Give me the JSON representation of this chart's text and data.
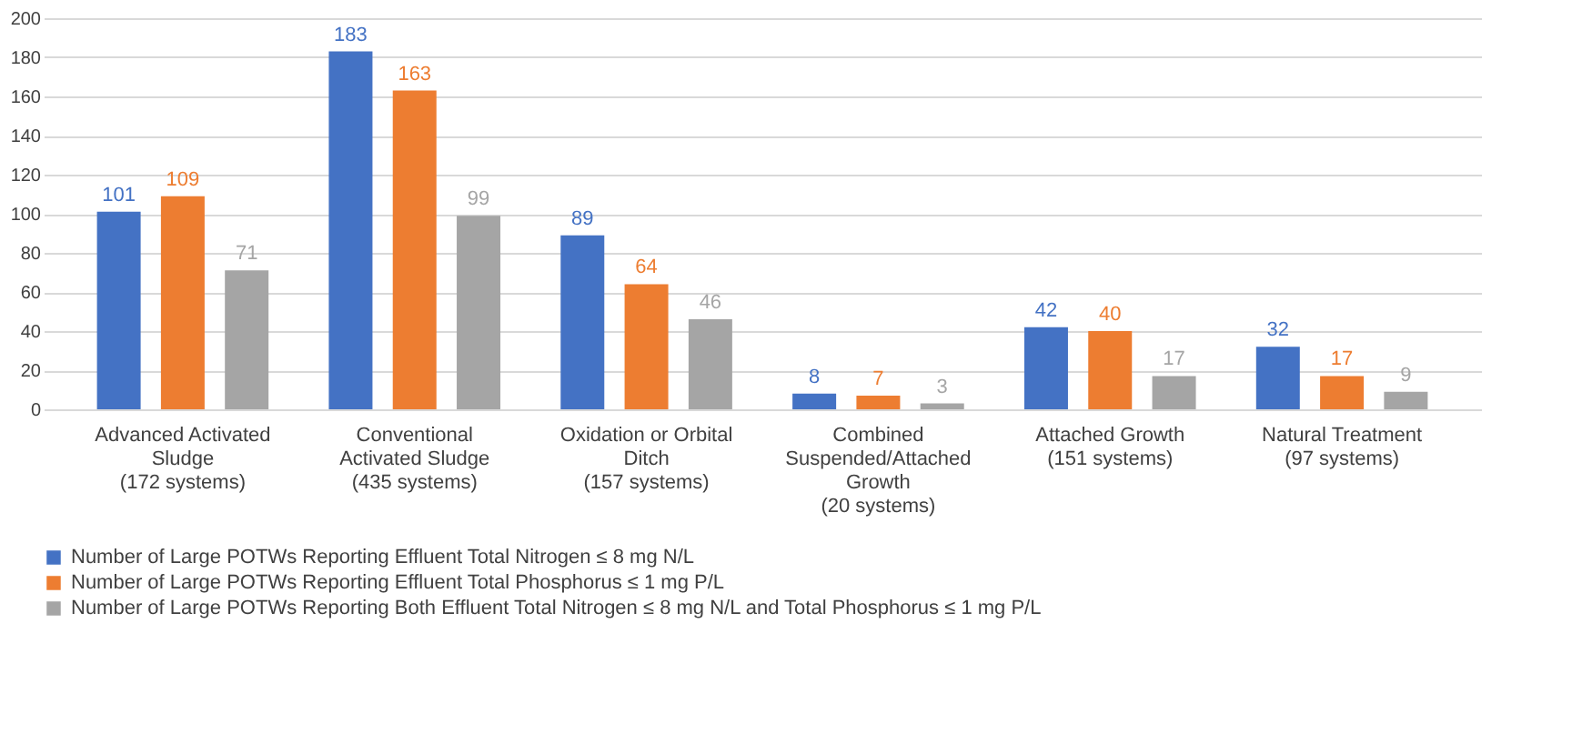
{
  "chart_data": {
    "type": "bar",
    "categories": [
      "Advanced Activated\nSludge\n(172 systems)",
      "Conventional\nActivated Sludge\n(435 systems)",
      "Oxidation or Orbital\nDitch\n(157 systems)",
      "Combined\nSuspended/Attached\nGrowth\n(20 systems)",
      "Attached Growth\n(151 systems)",
      "Natural Treatment\n(97 systems)"
    ],
    "series": [
      {
        "name": "Number of Large POTWs Reporting Effluent Total Nitrogen ≤ 8 mg N/L",
        "color": "#4472c4",
        "values": [
          101,
          183,
          89,
          8,
          42,
          32
        ]
      },
      {
        "name": "Number of Large POTWs Reporting Effluent Total Phosphorus ≤ 1 mg P/L",
        "color": "#ed7d31",
        "values": [
          109,
          163,
          64,
          7,
          40,
          17
        ]
      },
      {
        "name": "Number of Large POTWs Reporting Both Effluent Total Nitrogen ≤ 8 mg N/L and Total Phosphorus ≤ 1 mg P/L",
        "color": "#a5a5a5",
        "values": [
          71,
          99,
          46,
          3,
          17,
          9
        ]
      }
    ],
    "ylim": [
      0,
      200
    ],
    "yticks": [
      0,
      20,
      40,
      60,
      80,
      100,
      120,
      140,
      160,
      180,
      200
    ],
    "grid": "y",
    "legend": "bottom",
    "data_labels": true
  }
}
